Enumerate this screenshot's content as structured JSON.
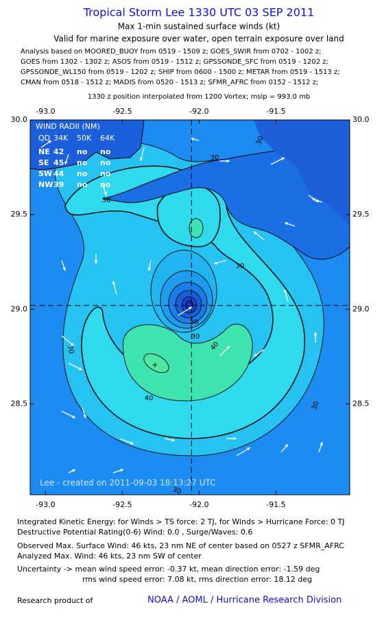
{
  "header": {
    "title": "Tropical Storm Lee 1330 UTC 03 SEP 2011",
    "subtitle": "Max 1-min sustained surface winds (kt)",
    "valid": "Valid for marine exposure over water, open terrain exposure over land",
    "analysis": [
      "Analysis based on MOORED_BUOY from 0519 - 1509 z; GOES_SWIR from 0702 - 1002 z;",
      "GOES from 1302 - 1302 z; ASOS from 0519 - 1512 z; GPSSONDE_SFC from 0519 - 1202 z;",
      "GPSSONDE_WL150 from 0519 - 1202 z; SHIP from 0600 - 1500 z; METAR from 0519 - 1513 z;",
      "CMAN from 0518 - 1512 z; MADIS from 0520 - 1513 z; SFMR_AFRC from 0152 - 1512 z;",
      "1330 z position interpolated from 1200 Vortex; mslp = 993.0 mb"
    ]
  },
  "map": {
    "xlim": [
      -93.1,
      -91.02
    ],
    "ylim": [
      28.02,
      30.0
    ],
    "xticks": [
      {
        "value": -93,
        "label": "-93.0"
      },
      {
        "value": -92.5,
        "label": "-92.5"
      },
      {
        "value": -92,
        "label": "-92.0"
      },
      {
        "value": -91.5,
        "label": "-91.5"
      }
    ],
    "yticks": [
      28.5,
      {
        "value": 29,
        "label": "29.0"
      },
      29.5,
      {
        "value": 30,
        "label": "30.0"
      }
    ],
    "center": {
      "lon": -92.05,
      "lat": 29.02
    },
    "wind_radii": {
      "title": "WIND RADII (NM)",
      "header": [
        "QD",
        "34K",
        "50K",
        "64K"
      ],
      "rows": [
        [
          "NE",
          "42",
          "no",
          "no"
        ],
        [
          "SE",
          "45",
          "no",
          "no"
        ],
        [
          "SW",
          "44",
          "no",
          "no"
        ],
        [
          "NW",
          "39",
          "no",
          "no"
        ]
      ]
    },
    "contour_labels": [
      "30",
      "30",
      "30",
      "30",
      "20",
      "30",
      "40",
      "40",
      "30",
      "30",
      "30"
    ],
    "credit": "Lee - created on 2011-09-03 18:13:27 UTC"
  },
  "footer": {
    "lines": [
      "Integrated Kinetic Energy:  for Winds > TS force: 2 TJ,  for Winds > Hurricane Force: 0 TJ",
      "Destructive Potential Rating(0-6)   Wind: 0.0 , Surge/Waves: 0.6",
      "Observed Max. Surface Wind: 46 kts, 23 nm NE of center based on 0527 z SFMR_AFRC",
      "Analyzed Max. Wind: 46 kts, 23 nm SW of center",
      "Uncertainty -> mean wind speed error:  -0.37 kt,   mean direction error:  -1.59 deg",
      "rms wind speed error: 7.08 kt,   rms direction error: 18.12 deg"
    ],
    "research": "Research product of",
    "org": "NOAA / AOML / Hurricane Research Division"
  }
}
